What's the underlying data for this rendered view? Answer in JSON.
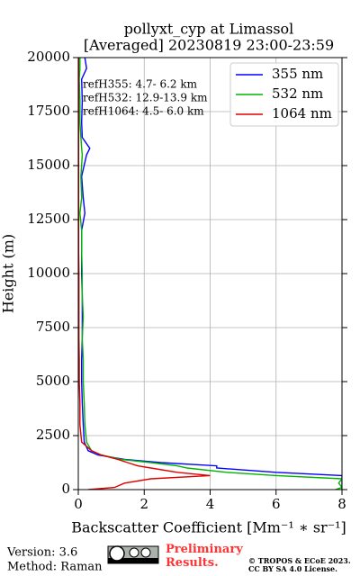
{
  "chart_data": {
    "type": "line",
    "title": "pollyxt_cyp at Limassol",
    "subtitle": "[Averaged] 20230819 23:00-23:59",
    "xlabel": "Backscatter Coefficient [Mm⁻¹ ∗ sr⁻¹]",
    "ylabel": "Height (m)",
    "heights": [
      0,
      100,
      300,
      500,
      650,
      800,
      1000,
      1100,
      1250,
      1400,
      1600,
      1800,
      2200,
      3000,
      4000,
      5000,
      6000,
      7000,
      8000,
      9000,
      10000,
      11000,
      12000,
      12800,
      13500,
      14500,
      15500,
      15800,
      16300,
      17000,
      18000,
      19000,
      19500,
      20000
    ],
    "series": [
      {
        "name": "355 nm",
        "color": "#0000ff",
        "values": [
          8,
          8,
          8,
          8,
          8,
          6,
          4.2,
          4.2,
          2.5,
          1.4,
          0.6,
          0.3,
          0.18,
          0.15,
          0.12,
          0.1,
          0.1,
          0.12,
          0.12,
          0.12,
          0.1,
          0.1,
          0.1,
          0.2,
          0.15,
          0.1,
          0.25,
          0.35,
          0.12,
          0.1,
          0.12,
          0.1,
          0.25,
          0.2
        ]
      },
      {
        "name": "532 nm",
        "color": "#00b400",
        "values": [
          7.8,
          8,
          7.9,
          8,
          6,
          4.5,
          3.3,
          3,
          2.2,
          1.3,
          0.7,
          0.4,
          0.25,
          0.2,
          0.18,
          0.15,
          0.15,
          0.12,
          0.15,
          0.12,
          0.12,
          0.1,
          0.1,
          0.05,
          0.1,
          0.08,
          0.12,
          0.1,
          0.08,
          0.05,
          0.05,
          0.03,
          0.05,
          0.05
        ]
      },
      {
        "name": "1064 nm",
        "color": "#e00000",
        "values": [
          0.3,
          1.1,
          1.4,
          2.2,
          4.0,
          3.0,
          2.2,
          1.8,
          1.5,
          1.2,
          0.7,
          0.4,
          0.1,
          0.05,
          0.05,
          0.03,
          0.03,
          0.02,
          0.02,
          0.02,
          0.02,
          0.01,
          0.01,
          0.01,
          0.01,
          0.01,
          0.01,
          0.01,
          0.01,
          0.01,
          0.01,
          0.01,
          0.01,
          0.01
        ]
      }
    ],
    "xlim": [
      0,
      8
    ],
    "xticks": [
      0,
      2,
      4,
      6,
      8
    ],
    "ylim": [
      0,
      20000
    ],
    "yticks": [
      0,
      2500,
      5000,
      7500,
      10000,
      12500,
      15000,
      17500,
      20000
    ],
    "grid": true,
    "legend": "upper right",
    "annotations": [
      "refH355:  4.7- 6.2 km",
      "refH532: 12.9-13.9 km",
      "refH1064:  4.5- 6.0 km"
    ],
    "footer": {
      "version": "Version: 3.6",
      "method": "Method: Raman",
      "status": "Preliminary Results.",
      "license": [
        "© TROPOS & ECoE 2023.",
        "CC BY SA 4.0 License."
      ]
    }
  }
}
